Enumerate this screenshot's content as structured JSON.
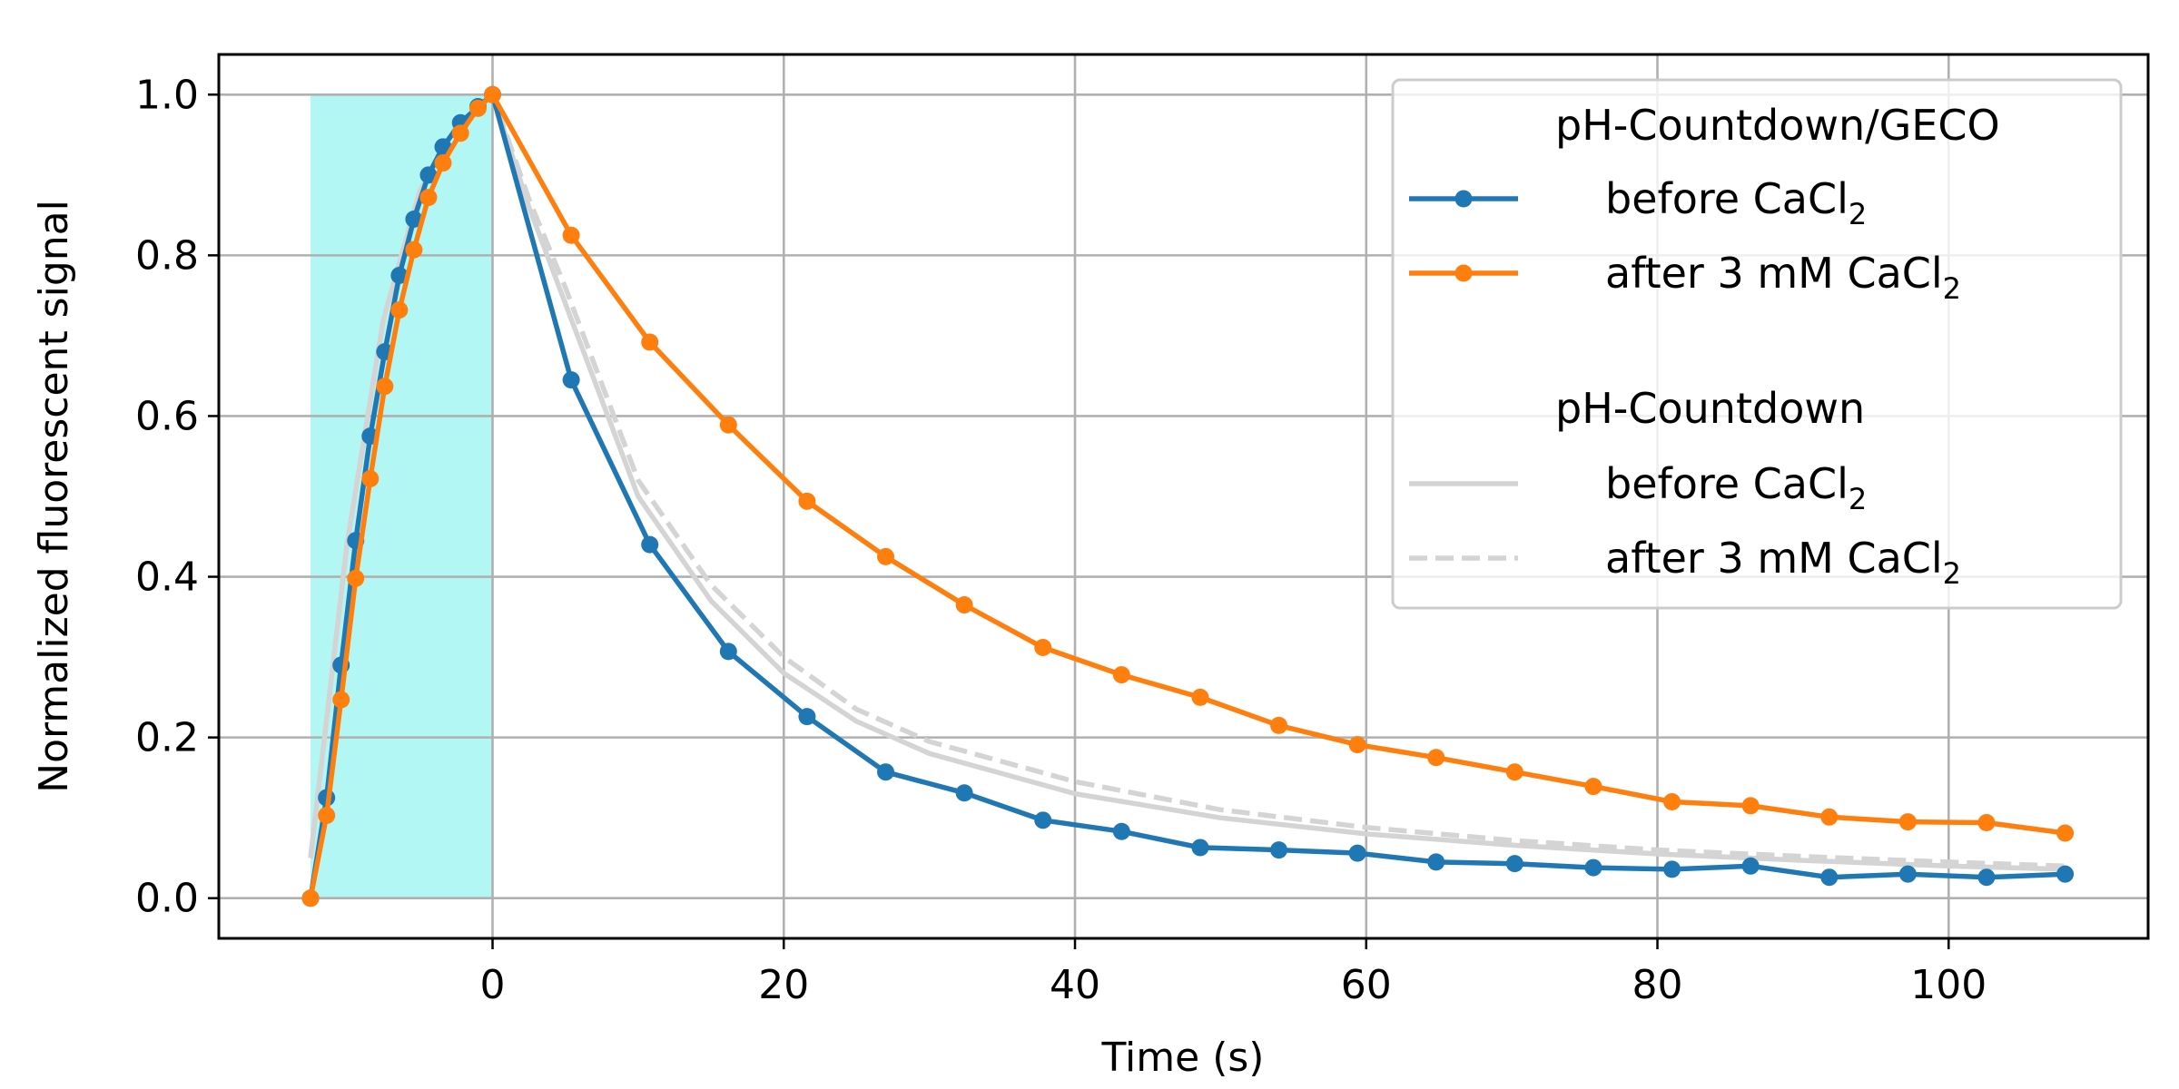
{
  "chart_data": {
    "type": "line",
    "xlabel": "Time (s)",
    "ylabel": "Normalized fluorescent signal",
    "xlim": [
      -18.8,
      113.7
    ],
    "ylim": [
      -0.05,
      1.05
    ],
    "x_ticks": [
      0,
      20,
      40,
      60,
      80,
      100
    ],
    "y_ticks": [
      0.0,
      0.2,
      0.4,
      0.6,
      0.8,
      1.0
    ],
    "x_tick_labels": [
      "0",
      "20",
      "40",
      "60",
      "80",
      "100"
    ],
    "y_tick_labels": [
      "0.0",
      "0.2",
      "0.4",
      "0.6",
      "0.8",
      "1.0"
    ],
    "grid": true,
    "shaded_region": {
      "x_start": -12.5,
      "x_end": 0,
      "y_start": 0,
      "y_end": 1.0,
      "color": "#b3f7f5"
    },
    "legend": {
      "placement": "top-right",
      "groups": [
        {
          "title": "pH-Countdown/GECO",
          "entries": [
            {
              "series": 0,
              "label": "before CaCl",
              "subscript": "2"
            },
            {
              "series": 1,
              "label": "after 3 mM CaCl",
              "subscript": "2"
            }
          ]
        },
        {
          "title": "pH-Countdown",
          "entries": [
            {
              "series": 2,
              "label": "before CaCl",
              "subscript": "2"
            },
            {
              "series": 3,
              "label": "after 3 mM CaCl",
              "subscript": "2"
            }
          ]
        }
      ]
    },
    "series": [
      {
        "color": "#1f77b4",
        "style": "solid",
        "markers": true,
        "x": [
          -12.5,
          -11.4,
          -10.4,
          -9.4,
          -8.4,
          -7.4,
          -6.4,
          -5.4,
          -4.4,
          -3.4,
          -2.2,
          -1.0,
          0.0,
          5.4,
          10.8,
          16.2,
          21.6,
          27.0,
          32.4,
          37.8,
          43.2,
          48.6,
          54.0,
          59.4,
          64.8,
          70.2,
          75.6,
          81.0,
          86.4,
          91.8,
          97.2,
          102.6,
          108.0
        ],
        "y": [
          0.0,
          0.125,
          0.29,
          0.445,
          0.575,
          0.68,
          0.775,
          0.845,
          0.9,
          0.935,
          0.965,
          0.985,
          1.0,
          0.645,
          0.44,
          0.307,
          0.226,
          0.157,
          0.131,
          0.097,
          0.083,
          0.063,
          0.06,
          0.056,
          0.045,
          0.043,
          0.038,
          0.036,
          0.04,
          0.026,
          0.03,
          0.026,
          0.03
        ]
      },
      {
        "color": "#ff7f0e",
        "style": "solid",
        "markers": true,
        "x": [
          -12.5,
          -11.4,
          -10.4,
          -9.4,
          -8.4,
          -7.4,
          -6.4,
          -5.4,
          -4.4,
          -3.4,
          -2.2,
          -1.0,
          0.0,
          5.4,
          10.8,
          16.2,
          21.6,
          27.0,
          32.4,
          37.8,
          43.2,
          48.6,
          54.0,
          59.4,
          64.8,
          70.2,
          75.6,
          81.0,
          86.4,
          91.8,
          97.2,
          102.6,
          108.0
        ],
        "y": [
          0.0,
          0.103,
          0.247,
          0.398,
          0.522,
          0.637,
          0.732,
          0.807,
          0.872,
          0.915,
          0.952,
          0.983,
          1.0,
          0.825,
          0.692,
          0.589,
          0.494,
          0.425,
          0.365,
          0.312,
          0.278,
          0.25,
          0.215,
          0.191,
          0.175,
          0.157,
          0.139,
          0.12,
          0.115,
          0.101,
          0.095,
          0.094,
          0.081
        ]
      },
      {
        "color": "#d4d4d4",
        "style": "solid",
        "markers": false,
        "x": [
          -12.5,
          -10.0,
          -7.5,
          -5.0,
          -2.5,
          0.0,
          2.5,
          5.0,
          10.0,
          15.0,
          20.0,
          25.0,
          30.0,
          40.0,
          50.0,
          60.0,
          70.0,
          80.0,
          90.0,
          100.0,
          108.0
        ],
        "y": [
          0.05,
          0.44,
          0.72,
          0.88,
          0.96,
          1.0,
          0.86,
          0.74,
          0.5,
          0.37,
          0.28,
          0.22,
          0.18,
          0.13,
          0.1,
          0.08,
          0.066,
          0.055,
          0.047,
          0.04,
          0.036
        ]
      },
      {
        "color": "#d4d4d4",
        "style": "dashed",
        "markers": false,
        "x": [
          -12.5,
          -10.0,
          -7.5,
          -5.0,
          -2.5,
          0.0,
          2.5,
          5.0,
          10.0,
          15.0,
          20.0,
          25.0,
          30.0,
          40.0,
          50.0,
          60.0,
          70.0,
          80.0,
          90.0,
          100.0,
          108.0
        ],
        "y": [
          0.05,
          0.44,
          0.72,
          0.88,
          0.96,
          1.0,
          0.87,
          0.76,
          0.52,
          0.39,
          0.3,
          0.235,
          0.195,
          0.145,
          0.11,
          0.088,
          0.072,
          0.06,
          0.052,
          0.045,
          0.04
        ]
      }
    ]
  }
}
